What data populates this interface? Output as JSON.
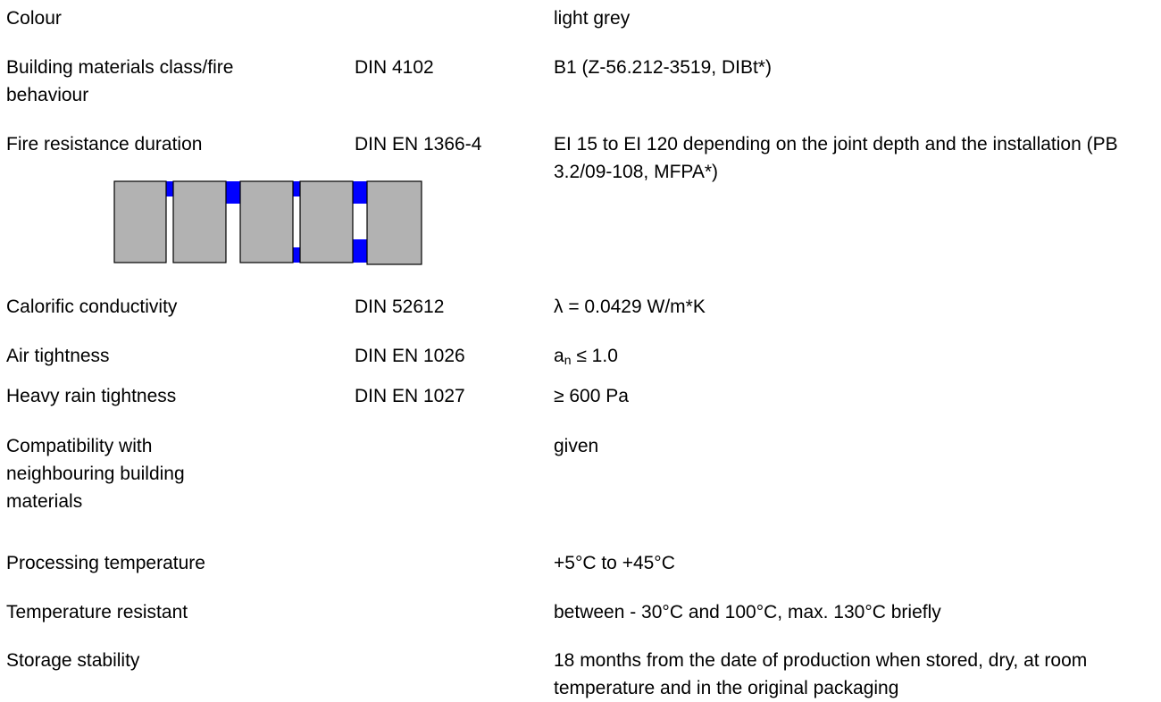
{
  "rows": [
    {
      "property": "Colour",
      "standard": "",
      "value": "light grey"
    },
    {
      "property": "Building materials class/fire behaviour",
      "standard": "DIN 4102",
      "value": "B1 (Z-56.212-3519, DIBt*)"
    },
    {
      "property": "Fire resistance duration",
      "standard": "DIN EN 1366-4",
      "value": "EI 15 to EI 120 depending on the joint depth and the installation (PB 3.2/09-108, MFPA*)"
    },
    {
      "property": "Calorific conductivity",
      "standard": "DIN 52612",
      "value": "λ = 0.0429 W/m*K"
    },
    {
      "property": "Air tightness",
      "standard": "DIN EN 1026",
      "value_prefix": "a",
      "value_subscript": "n",
      "value_suffix": " ≤ 1.0"
    },
    {
      "property": "Heavy rain tightness",
      "standard": "DIN EN 1027",
      "value": "≥ 600 Pa"
    },
    {
      "property": "Compatibility with neighbouring building materials",
      "standard": "",
      "value": "given"
    },
    {
      "property": "Processing temperature",
      "standard": "",
      "value": "+5°C to +45°C"
    },
    {
      "property": "Temperature resistant",
      "standard": "",
      "value": "between - 30°C and 100°C, max. 130°C briefly"
    },
    {
      "property": "Storage stability",
      "standard": "",
      "value": "18 months from the date of production when stored, dry, at room temperature and in the original packaging"
    }
  ],
  "diagram": {
    "panel_color": "#b2b2b2",
    "sealant_color": "#0000ff",
    "outline_color": "#000000"
  }
}
